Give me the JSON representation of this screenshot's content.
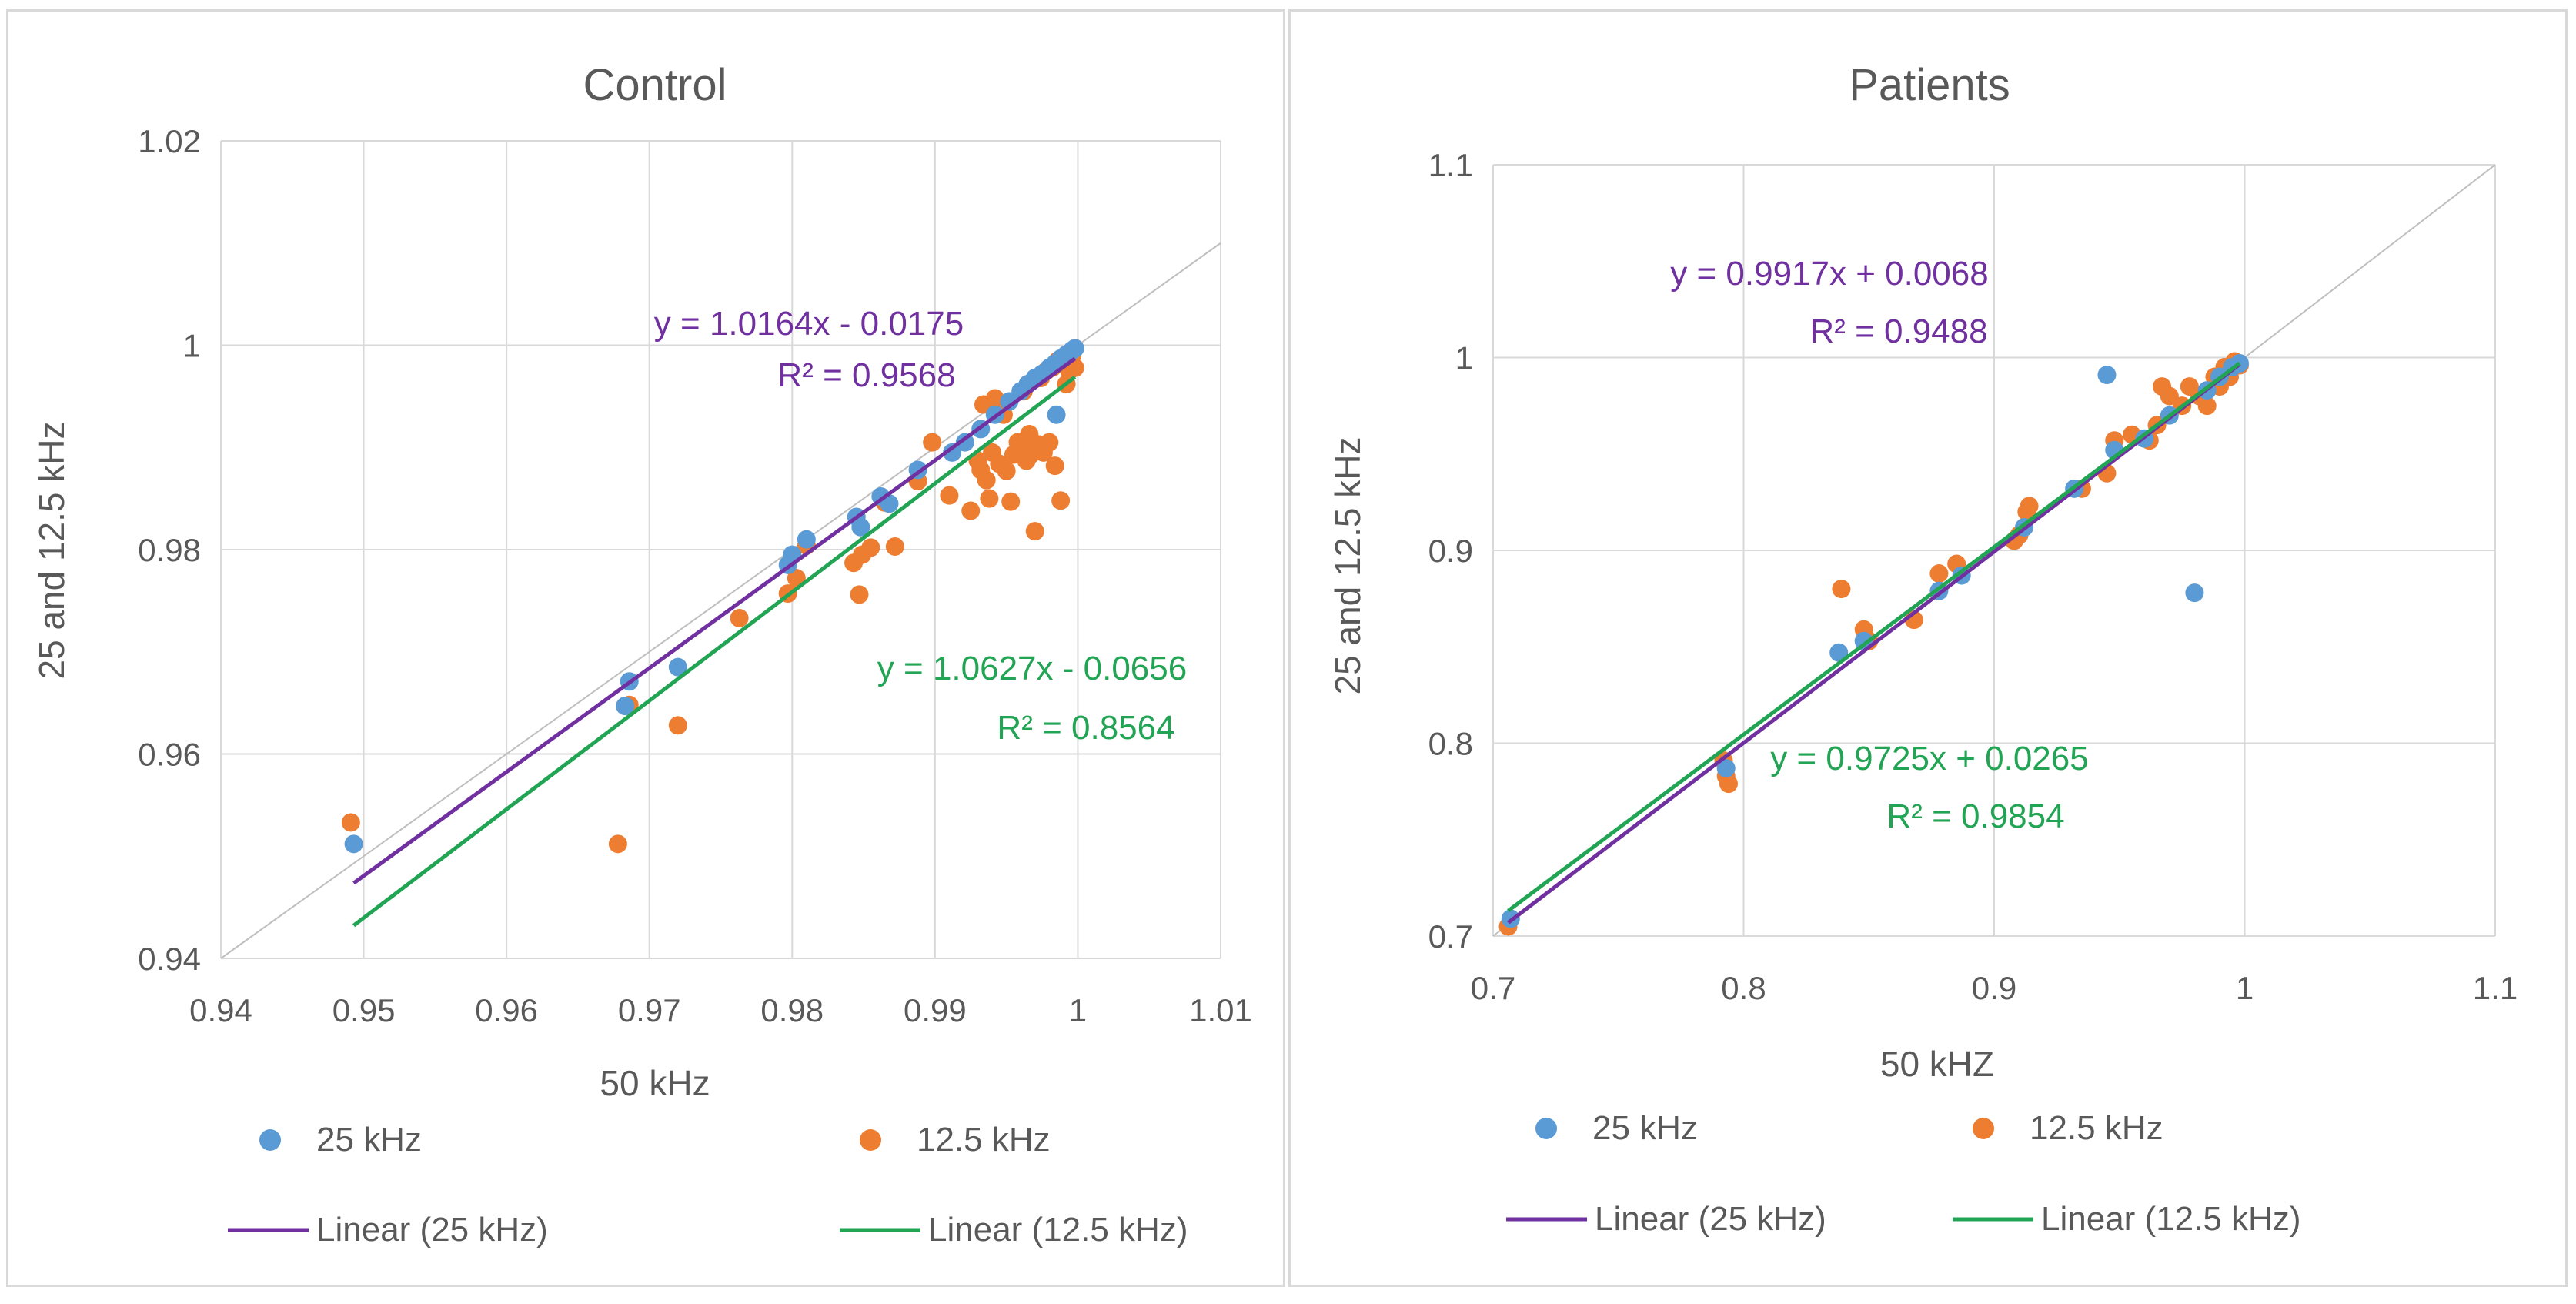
{
  "chart_data": [
    {
      "type": "scatter",
      "title": "Control",
      "xlabel": "50 kHz",
      "ylabel": "25 and 12.5 kHz",
      "xlim": [
        0.94,
        1.01
      ],
      "ylim": [
        0.94,
        1.02
      ],
      "xticks": [
        "0.94",
        "0.95",
        "0.96",
        "0.97",
        "0.98",
        "0.99",
        "1",
        "1.01"
      ],
      "yticks": [
        "0.94",
        "0.96",
        "0.98",
        "1",
        "1.02"
      ],
      "xtick_values": [
        0.94,
        0.95,
        0.96,
        0.97,
        0.98,
        0.99,
        1.0,
        1.01
      ],
      "ytick_values": [
        0.94,
        0.96,
        0.98,
        1.0,
        1.02
      ],
      "grid": true,
      "identity_line": true,
      "legend_placement": "bottom",
      "colors": {
        "s25": "#5b9bd5",
        "s125": "#ed7d31",
        "fit25": "#7030a0",
        "fit125": "#21a453",
        "grid": "#d9d9d9",
        "identity": "#bfbfbf"
      },
      "series": [
        {
          "name": "25 kHz",
          "points": [
            [
              0.9493,
              0.9512
            ],
            [
              0.9683,
              0.9647
            ],
            [
              0.9686,
              0.9671
            ],
            [
              0.972,
              0.9685
            ],
            [
              0.9797,
              0.9785
            ],
            [
              0.98,
              0.9795
            ],
            [
              0.981,
              0.981
            ],
            [
              0.9845,
              0.9832
            ],
            [
              0.9848,
              0.9822
            ],
            [
              0.9862,
              0.9852
            ],
            [
              0.9868,
              0.9845
            ],
            [
              0.9888,
              0.9878
            ],
            [
              0.9912,
              0.9895
            ],
            [
              0.9921,
              0.9905
            ],
            [
              0.9932,
              0.9918
            ],
            [
              0.9942,
              0.9932
            ],
            [
              0.9952,
              0.9945
            ],
            [
              0.996,
              0.9955
            ],
            [
              0.9965,
              0.9962
            ],
            [
              0.997,
              0.9968
            ],
            [
              0.9975,
              0.9972
            ],
            [
              0.998,
              0.9978
            ],
            [
              0.9984,
              0.9982
            ],
            [
              0.9988,
              0.9987
            ],
            [
              0.9985,
              0.9932
            ],
            [
              0.9992,
              0.9991
            ],
            [
              0.9996,
              0.9995
            ],
            [
              0.9998,
              0.9997
            ]
          ]
        },
        {
          "name": "12.5 kHz",
          "points": [
            [
              0.9491,
              0.9533
            ],
            [
              0.9678,
              0.9512
            ],
            [
              0.9686,
              0.9648
            ],
            [
              0.972,
              0.9628
            ],
            [
              0.9763,
              0.9733
            ],
            [
              0.9797,
              0.9757
            ],
            [
              0.9803,
              0.9772
            ],
            [
              0.981,
              0.9804
            ],
            [
              0.9843,
              0.9787
            ],
            [
              0.9847,
              0.9756
            ],
            [
              0.9849,
              0.9795
            ],
            [
              0.9855,
              0.9802
            ],
            [
              0.9865,
              0.9846
            ],
            [
              0.9872,
              0.9803
            ],
            [
              0.9888,
              0.9867
            ],
            [
              0.9898,
              0.9905
            ],
            [
              0.991,
              0.9853
            ],
            [
              0.9925,
              0.9838
            ],
            [
              0.993,
              0.9887
            ],
            [
              0.9932,
              0.9878
            ],
            [
              0.9934,
              0.9942
            ],
            [
              0.9936,
              0.9868
            ],
            [
              0.9938,
              0.985
            ],
            [
              0.994,
              0.9895
            ],
            [
              0.9942,
              0.9948
            ],
            [
              0.9945,
              0.9884
            ],
            [
              0.9948,
              0.9932
            ],
            [
              0.995,
              0.9877
            ],
            [
              0.9953,
              0.9847
            ],
            [
              0.9955,
              0.9893
            ],
            [
              0.9958,
              0.9905
            ],
            [
              0.996,
              0.9898
            ],
            [
              0.9962,
              0.9955
            ],
            [
              0.9964,
              0.9887
            ],
            [
              0.9966,
              0.9913
            ],
            [
              0.9967,
              0.9893
            ],
            [
              0.9968,
              0.9897
            ],
            [
              0.997,
              0.9818
            ],
            [
              0.9972,
              0.9903
            ],
            [
              0.9974,
              0.9968
            ],
            [
              0.9976,
              0.9895
            ],
            [
              0.9978,
              0.9975
            ],
            [
              0.998,
              0.9905
            ],
            [
              0.9982,
              0.9978
            ],
            [
              0.9984,
              0.9882
            ],
            [
              0.9986,
              0.9985
            ],
            [
              0.9988,
              0.9848
            ],
            [
              0.999,
              0.9983
            ],
            [
              0.9992,
              0.9962
            ],
            [
              0.9994,
              0.9975
            ],
            [
              0.9996,
              0.999
            ],
            [
              0.9998,
              0.9978
            ]
          ]
        }
      ],
      "trendlines": [
        {
          "name": "Linear (25 kHz)",
          "slope": 1.0164,
          "intercept": -0.0175,
          "x_range": [
            0.9493,
            0.9998
          ],
          "equation": "y = 1.0164x - 0.0175",
          "r2": "R² = 0.9568"
        },
        {
          "name": "Linear (12.5 kHz)",
          "slope": 1.0627,
          "intercept": -0.0656,
          "x_range": [
            0.9493,
            0.9998
          ],
          "equation": "y = 1.0627x - 0.0656",
          "r2": "R² = 0.8564"
        }
      ],
      "legend": [
        "25 kHz",
        "12.5 kHz",
        "Linear (25 kHz)",
        "Linear (12.5 kHz)"
      ]
    },
    {
      "type": "scatter",
      "title": "Patients",
      "xlabel": "50 kHZ",
      "ylabel": "25 and 12.5 kHz",
      "xlim": [
        0.7,
        1.1
      ],
      "ylim": [
        0.7,
        1.1
      ],
      "xticks": [
        "0.7",
        "0.8",
        "0.9",
        "1",
        "1.1"
      ],
      "yticks": [
        "0.7",
        "0.8",
        "0.9",
        "1",
        "1.1"
      ],
      "xtick_values": [
        0.7,
        0.8,
        0.9,
        1.0,
        1.1
      ],
      "ytick_values": [
        0.7,
        0.8,
        0.9,
        1.0,
        1.1
      ],
      "grid": true,
      "identity_line": true,
      "legend_placement": "bottom",
      "colors": {
        "s25": "#5b9bd5",
        "s125": "#ed7d31",
        "fit25": "#7030a0",
        "fit125": "#21a453",
        "grid": "#d9d9d9",
        "identity": "#bfbfbf"
      },
      "series": [
        {
          "name": "25 kHz",
          "points": [
            [
              0.707,
              0.709
            ],
            [
              0.793,
              0.787
            ],
            [
              0.838,
              0.847
            ],
            [
              0.848,
              0.853
            ],
            [
              0.878,
              0.879
            ],
            [
              0.887,
              0.887
            ],
            [
              0.912,
              0.912
            ],
            [
              0.932,
              0.932
            ],
            [
              0.945,
              0.991
            ],
            [
              0.948,
              0.952
            ],
            [
              0.96,
              0.958
            ],
            [
              0.97,
              0.97
            ],
            [
              0.98,
              0.878
            ],
            [
              0.985,
              0.983
            ],
            [
              0.99,
              0.99
            ],
            [
              0.995,
              0.995
            ],
            [
              0.998,
              0.997
            ]
          ]
        },
        {
          "name": "12.5 kHz",
          "points": [
            [
              0.706,
              0.705
            ],
            [
              0.792,
              0.791
            ],
            [
              0.793,
              0.783
            ],
            [
              0.794,
              0.779
            ],
            [
              0.839,
              0.88
            ],
            [
              0.848,
              0.859
            ],
            [
              0.85,
              0.853
            ],
            [
              0.868,
              0.864
            ],
            [
              0.878,
              0.888
            ],
            [
              0.885,
              0.893
            ],
            [
              0.908,
              0.905
            ],
            [
              0.91,
              0.908
            ],
            [
              0.912,
              0.912
            ],
            [
              0.913,
              0.92
            ],
            [
              0.914,
              0.923
            ],
            [
              0.935,
              0.932
            ],
            [
              0.945,
              0.94
            ],
            [
              0.948,
              0.957
            ],
            [
              0.955,
              0.96
            ],
            [
              0.962,
              0.957
            ],
            [
              0.965,
              0.965
            ],
            [
              0.967,
              0.985
            ],
            [
              0.97,
              0.98
            ],
            [
              0.975,
              0.975
            ],
            [
              0.978,
              0.985
            ],
            [
              0.982,
              0.98
            ],
            [
              0.985,
              0.975
            ],
            [
              0.988,
              0.99
            ],
            [
              0.99,
              0.985
            ],
            [
              0.992,
              0.995
            ],
            [
              0.994,
              0.99
            ],
            [
              0.996,
              0.998
            ],
            [
              0.998,
              0.996
            ]
          ]
        }
      ],
      "trendlines": [
        {
          "name": "Linear (25 kHz)",
          "slope": 0.9917,
          "intercept": 0.0068,
          "x_range": [
            0.706,
            0.998
          ],
          "equation": "y = 0.9917x + 0.0068",
          "r2": "R² = 0.9488"
        },
        {
          "name": "Linear (12.5 kHz)",
          "slope": 0.9725,
          "intercept": 0.0265,
          "x_range": [
            0.706,
            0.998
          ],
          "equation": "y = 0.9725x + 0.0265",
          "r2": "R² = 0.9854"
        }
      ],
      "legend": [
        "25 kHz",
        "12.5 kHz",
        "Linear (25 kHz)",
        "Linear (12.5 kHz)"
      ]
    }
  ]
}
